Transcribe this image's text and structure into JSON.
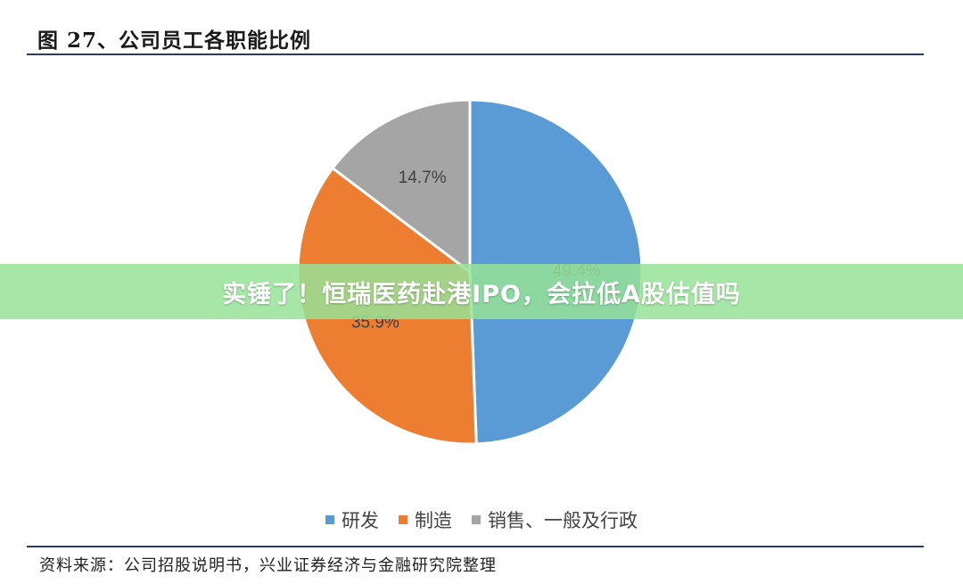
{
  "chart_data": {
    "type": "pie",
    "title": "图 27、公司员工各职能比例",
    "slices": [
      {
        "label": "研发",
        "value": 49.4,
        "value_label": "49.4%",
        "color": "#5b9bd5"
      },
      {
        "label": "制造",
        "value": 35.9,
        "value_label": "35.9%",
        "color": "#ed7d31"
      },
      {
        "label": "销售、一般及行政",
        "value": 14.7,
        "value_label": "14.7%",
        "color": "#a5a5a5"
      }
    ],
    "legend_position": "bottom"
  },
  "source": "资料来源：公司招股说明书，兴业证券经济与金融研究院整理",
  "banner": "实锤了！恒瑞医药赴港IPO，会拉低A股估值吗"
}
